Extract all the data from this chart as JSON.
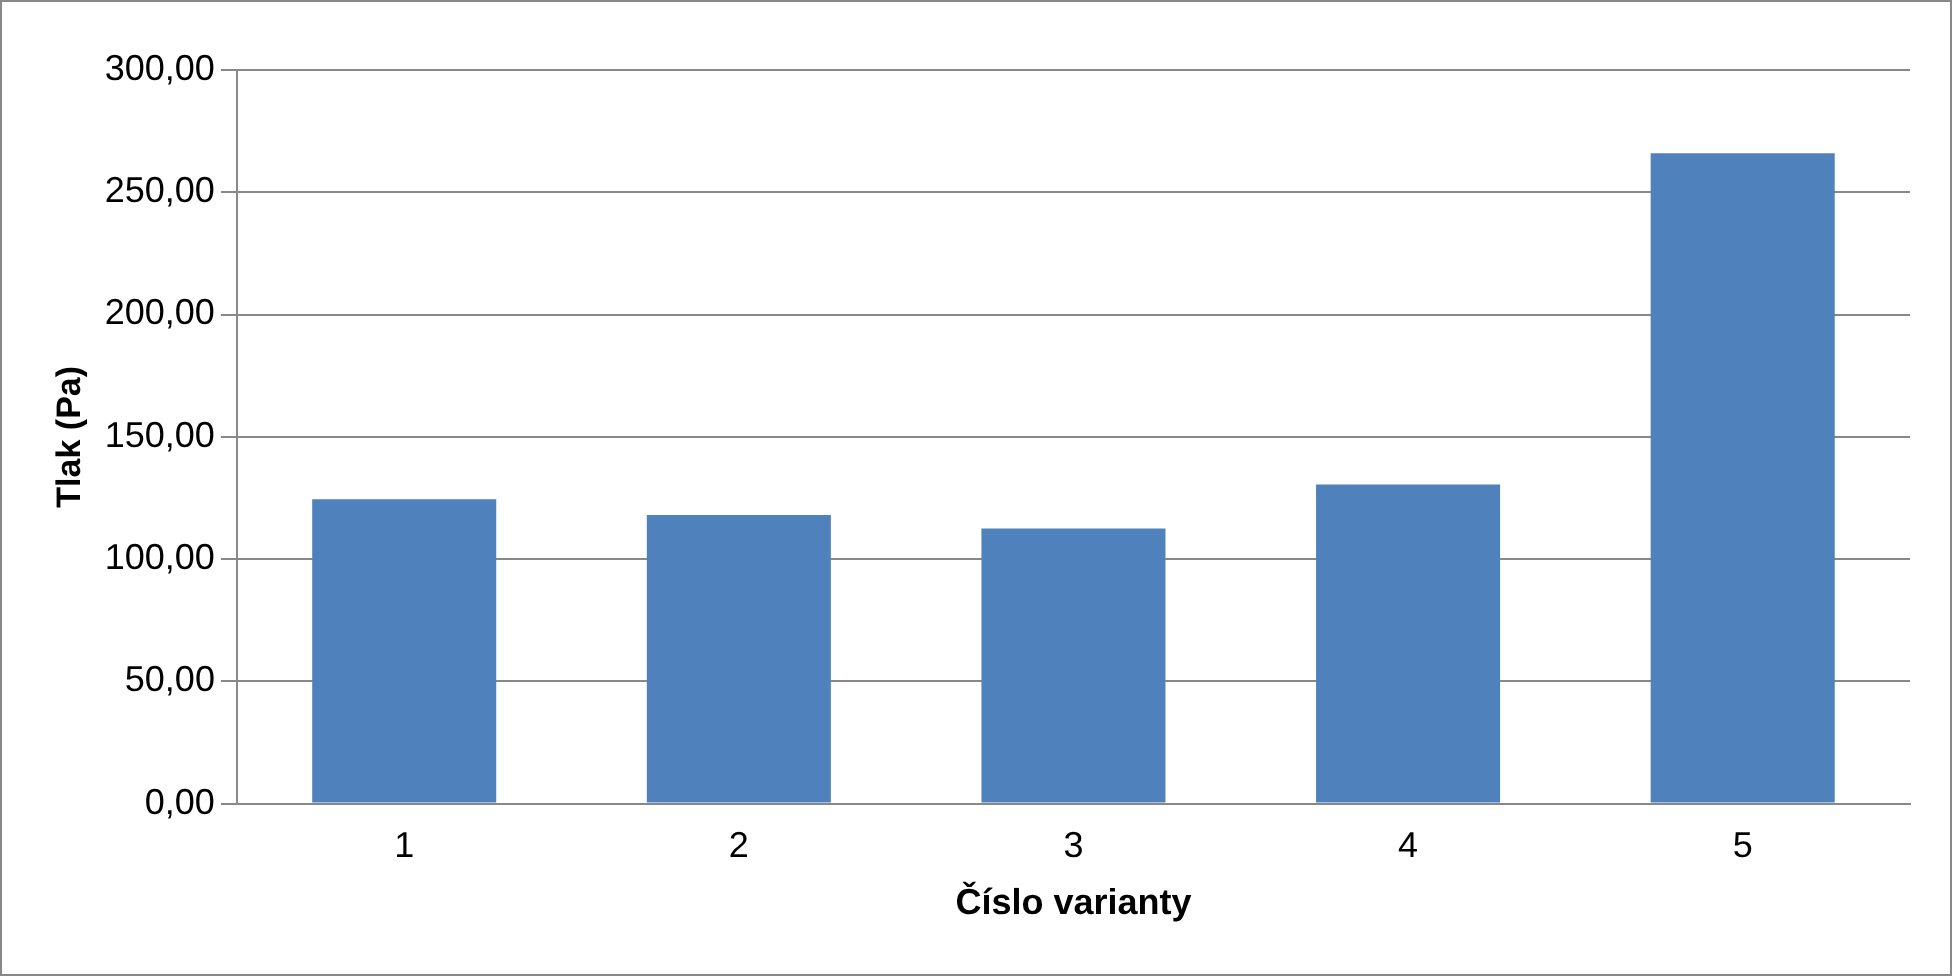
{
  "chart_data": {
    "type": "bar",
    "xlabel": "Číslo varianty",
    "ylabel": "Tlak (Pa)",
    "categories": [
      "1",
      "2",
      "3",
      "4",
      "5"
    ],
    "values": [
      124.5,
      118,
      112.5,
      130.5,
      266
    ],
    "color": "#4f81bd",
    "ylim": [
      0,
      300
    ],
    "yticks": [
      {
        "value": 0,
        "label": "0,00"
      },
      {
        "value": 50,
        "label": "50,00"
      },
      {
        "value": 100,
        "label": "100,00"
      },
      {
        "value": 150,
        "label": "150,00"
      },
      {
        "value": 200,
        "label": "200,00"
      },
      {
        "value": 250,
        "label": "250,00"
      },
      {
        "value": 300,
        "label": "300,00"
      }
    ],
    "grid": "y",
    "legend": false
  }
}
